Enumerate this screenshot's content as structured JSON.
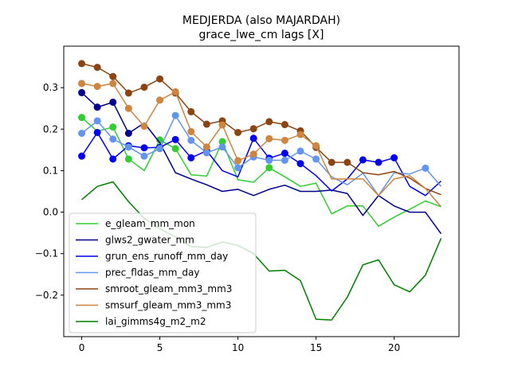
{
  "chart_data": {
    "type": "line",
    "title": "MEDJERDA (also MAJARDAH)",
    "subtitle": "grace_lwe_cm lags [X]",
    "xlabel": "",
    "ylabel": "",
    "xlim": [
      -1.15,
      24.15
    ],
    "ylim": [
      -0.3,
      0.4
    ],
    "xticks": [
      0,
      5,
      10,
      15,
      20
    ],
    "yticks": [
      -0.2,
      -0.1,
      0.0,
      0.1,
      0.2,
      0.3
    ],
    "ytick_labels": [
      "−0.2",
      "−0.1",
      "0.0",
      "0.1",
      "0.2",
      "0.3"
    ],
    "grid": false,
    "legend_position": "lower-left",
    "x": [
      0,
      1,
      2,
      3,
      4,
      5,
      6,
      7,
      8,
      9,
      10,
      11,
      12,
      13,
      14,
      15,
      16,
      17,
      18,
      19,
      20,
      21,
      22,
      23
    ],
    "series": [
      {
        "name": "e_gleam_mm_mon",
        "color": "#32cd32",
        "values": [
          0.228,
          0.195,
          0.205,
          0.128,
          0.1,
          0.174,
          0.153,
          0.09,
          0.087,
          0.17,
          0.078,
          0.072,
          0.107,
          0.085,
          0.062,
          0.07,
          -0.004,
          0.015,
          0.015,
          -0.034,
          -0.012,
          0.007,
          0.027,
          0.013
        ],
        "markers": [
          0,
          2,
          3,
          5,
          6,
          9,
          12
        ]
      },
      {
        "name": "glws2_gwater_mm",
        "color": "#00008b",
        "values": [
          0.288,
          0.253,
          0.265,
          0.19,
          0.215,
          0.167,
          0.095,
          0.08,
          0.066,
          0.05,
          0.055,
          0.04,
          0.055,
          0.065,
          0.05,
          0.05,
          0.053,
          0.045,
          -0.008,
          0.04,
          0.015,
          0.0,
          0.0,
          -0.052
        ],
        "markers": [
          0,
          1,
          2,
          3
        ]
      },
      {
        "name": "grun_ens_runoff_mm_day",
        "color": "#0000ee",
        "values": [
          0.135,
          0.192,
          0.128,
          0.16,
          0.155,
          0.156,
          0.175,
          0.131,
          0.148,
          0.1,
          0.085,
          0.178,
          0.13,
          0.142,
          0.117,
          0.088,
          0.051,
          0.08,
          0.126,
          0.12,
          0.131,
          0.062,
          0.04,
          0.075
        ],
        "markers": [
          0,
          1,
          2,
          3,
          4,
          5,
          6,
          7,
          8,
          11,
          12,
          13,
          14,
          18,
          19,
          20
        ]
      },
      {
        "name": "prec_fldas_mm_day",
        "color": "#6495ed",
        "values": [
          0.19,
          0.22,
          0.176,
          0.157,
          0.135,
          0.153,
          0.233,
          0.173,
          0.143,
          0.157,
          0.107,
          0.133,
          0.125,
          0.125,
          0.147,
          0.128,
          0.085,
          0.066,
          0.094,
          0.04,
          0.095,
          0.092,
          0.106,
          0.062
        ],
        "markers": [
          0,
          1,
          2,
          3,
          4,
          5,
          6,
          7,
          8,
          9,
          10,
          11,
          12,
          13,
          14,
          15,
          22
        ]
      },
      {
        "name": "smroot_gleam_mm3_mm3",
        "color": "#8b4513",
        "values": [
          0.358,
          0.349,
          0.327,
          0.287,
          0.301,
          0.321,
          0.287,
          0.242,
          0.212,
          0.22,
          0.192,
          0.201,
          0.218,
          0.211,
          0.196,
          0.156,
          0.12,
          0.12,
          0.095,
          0.09,
          0.098,
          0.082,
          0.057,
          0.042
        ],
        "markers": [
          0,
          1,
          2,
          3,
          4,
          5,
          6,
          7,
          8,
          9,
          10,
          11,
          12,
          13,
          14,
          15,
          16,
          17
        ]
      },
      {
        "name": "smsurf_gleam_mm3_mm3",
        "color": "#cd853f",
        "values": [
          0.31,
          0.303,
          0.31,
          0.25,
          0.207,
          0.27,
          0.29,
          0.194,
          0.157,
          0.21,
          0.124,
          0.14,
          0.177,
          0.173,
          0.187,
          0.16,
          0.08,
          0.08,
          0.08,
          0.04,
          0.08,
          0.088,
          0.057,
          0.013
        ],
        "markers": [
          0,
          1,
          2,
          3,
          4,
          5,
          6,
          7,
          8,
          9,
          10,
          11,
          12,
          13,
          14,
          15
        ]
      },
      {
        "name": "lai_gimms4g_m2_m2",
        "color": "#008000",
        "values": [
          0.03,
          0.062,
          0.073,
          0.025,
          -0.015,
          -0.04,
          -0.06,
          -0.083,
          -0.085,
          -0.072,
          -0.08,
          -0.1,
          -0.142,
          -0.14,
          -0.165,
          -0.258,
          -0.26,
          -0.205,
          -0.127,
          -0.115,
          -0.175,
          -0.192,
          -0.152,
          -0.063
        ],
        "markers": []
      }
    ]
  }
}
